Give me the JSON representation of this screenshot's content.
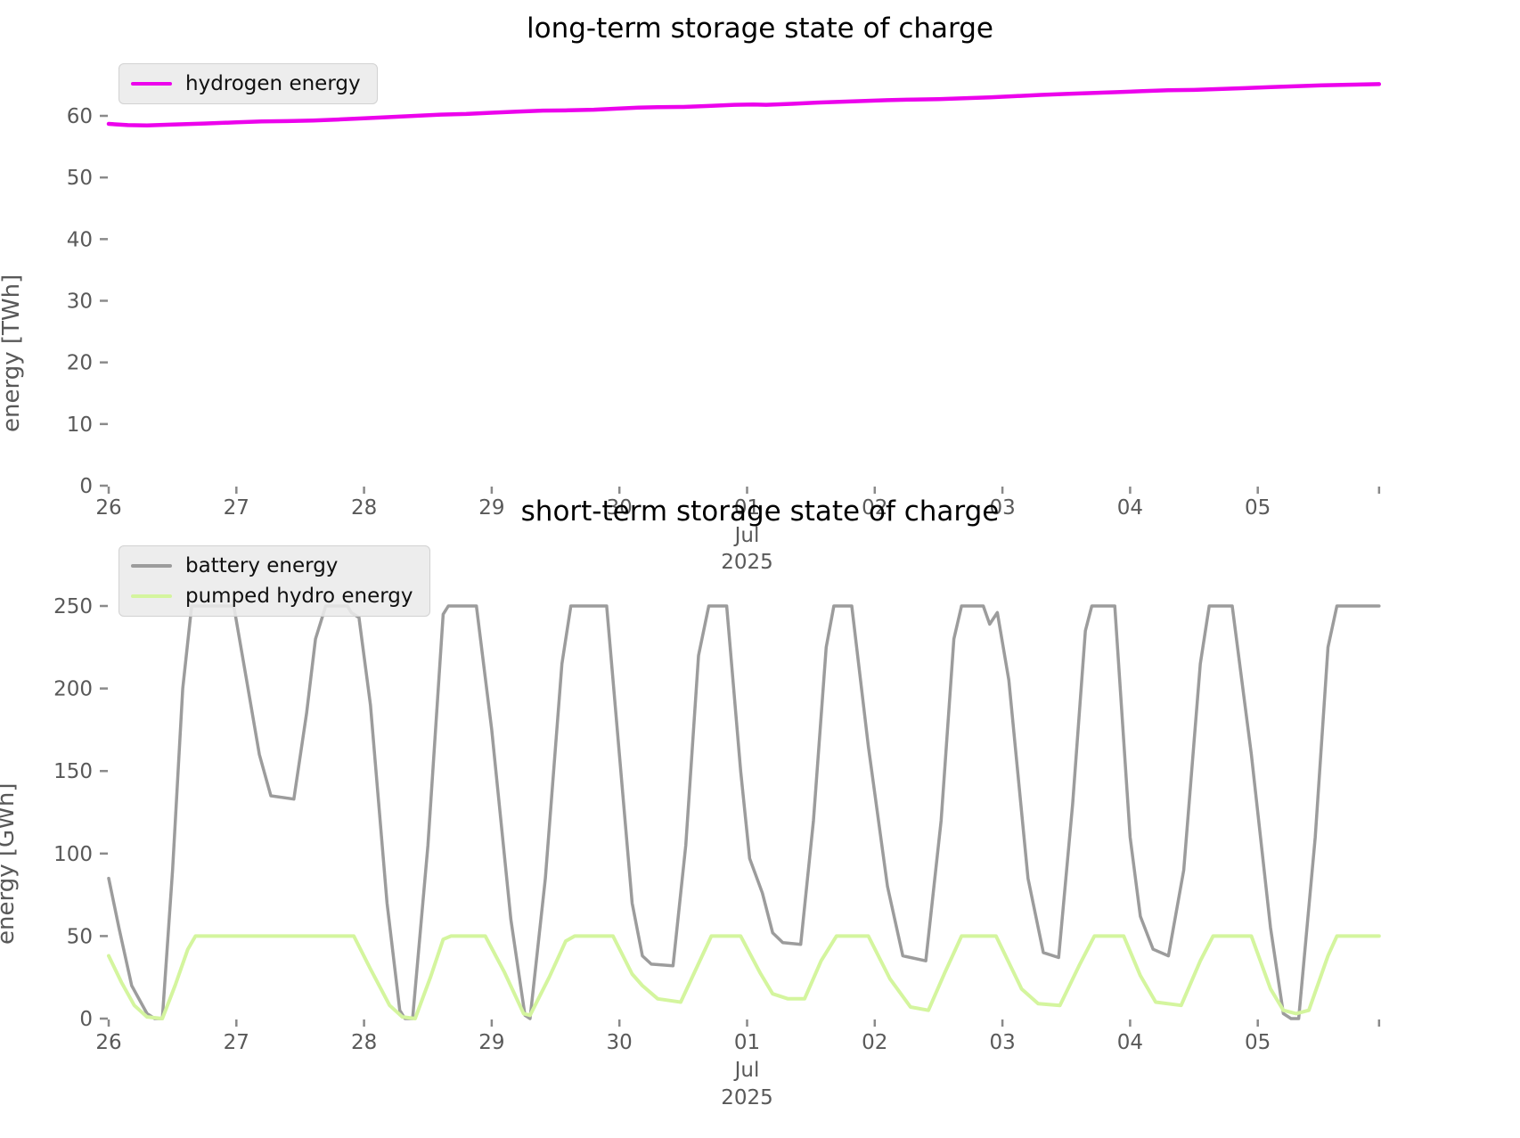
{
  "figure": {
    "background": "#ffffff",
    "tick_color": "#595959",
    "tick_mark_color": "#8a8a8a"
  },
  "chart_data": [
    {
      "type": "line",
      "title": "long-term storage state of charge",
      "ylabel": "energy [TWh]",
      "x_tick_labels": [
        "26",
        "27",
        "28",
        "29",
        "30",
        "01",
        "02",
        "03",
        "04",
        "05"
      ],
      "x_sublabels": [
        "Jul",
        "2025"
      ],
      "x_sublabel_index": 5,
      "y_ticks": [
        0,
        10,
        20,
        30,
        40,
        50,
        60
      ],
      "y_unit": "TWh",
      "x_range_days": [
        0,
        9.95
      ],
      "grid": false,
      "legend_position": "upper left",
      "series": [
        {
          "name": "hydrogen energy",
          "color": "#ec02ec",
          "line_width": 4.5,
          "points": [
            [
              0,
              58.7
            ],
            [
              0.15,
              58.5
            ],
            [
              0.3,
              58.45
            ],
            [
              0.5,
              58.6
            ],
            [
              0.75,
              58.75
            ],
            [
              1.0,
              58.95
            ],
            [
              1.2,
              59.1
            ],
            [
              1.4,
              59.15
            ],
            [
              1.6,
              59.25
            ],
            [
              1.8,
              59.4
            ],
            [
              2.0,
              59.6
            ],
            [
              2.2,
              59.8
            ],
            [
              2.4,
              60.0
            ],
            [
              2.6,
              60.2
            ],
            [
              2.8,
              60.3
            ],
            [
              3.0,
              60.5
            ],
            [
              3.2,
              60.7
            ],
            [
              3.4,
              60.85
            ],
            [
              3.6,
              60.9
            ],
            [
              3.8,
              61.0
            ],
            [
              4.0,
              61.2
            ],
            [
              4.15,
              61.35
            ],
            [
              4.3,
              61.4
            ],
            [
              4.5,
              61.45
            ],
            [
              4.7,
              61.6
            ],
            [
              4.9,
              61.8
            ],
            [
              5.05,
              61.85
            ],
            [
              5.15,
              61.8
            ],
            [
              5.35,
              61.95
            ],
            [
              5.55,
              62.15
            ],
            [
              5.75,
              62.3
            ],
            [
              5.95,
              62.45
            ],
            [
              6.1,
              62.55
            ],
            [
              6.3,
              62.65
            ],
            [
              6.5,
              62.7
            ],
            [
              6.7,
              62.85
            ],
            [
              6.9,
              63.0
            ],
            [
              7.1,
              63.2
            ],
            [
              7.3,
              63.4
            ],
            [
              7.5,
              63.55
            ],
            [
              7.7,
              63.7
            ],
            [
              7.9,
              63.85
            ],
            [
              8.1,
              64.0
            ],
            [
              8.3,
              64.15
            ],
            [
              8.5,
              64.2
            ],
            [
              8.7,
              64.35
            ],
            [
              8.9,
              64.5
            ],
            [
              9.1,
              64.65
            ],
            [
              9.3,
              64.8
            ],
            [
              9.5,
              64.95
            ],
            [
              9.7,
              65.05
            ],
            [
              9.95,
              65.15
            ]
          ]
        }
      ]
    },
    {
      "type": "line",
      "title": "short-term storage state of charge",
      "ylabel": "energy [GWh]",
      "x_tick_labels": [
        "26",
        "27",
        "28",
        "29",
        "30",
        "01",
        "02",
        "03",
        "04",
        "05"
      ],
      "x_sublabels": [
        "Jul",
        "2025"
      ],
      "x_sublabel_index": 5,
      "y_ticks": [
        0,
        50,
        100,
        150,
        200,
        250
      ],
      "y_unit": "GWh",
      "x_range_days": [
        0,
        9.95
      ],
      "grid": false,
      "legend_position": "upper left",
      "series": [
        {
          "name": "battery energy",
          "color": "#9c9c9c",
          "line_width": 3.5,
          "points": [
            [
              0,
              85
            ],
            [
              0.08,
              55
            ],
            [
              0.18,
              20
            ],
            [
              0.3,
              3
            ],
            [
              0.36,
              0
            ],
            [
              0.42,
              0
            ],
            [
              0.5,
              90
            ],
            [
              0.58,
              200
            ],
            [
              0.65,
              250
            ],
            [
              0.98,
              250
            ],
            [
              1.08,
              205
            ],
            [
              1.18,
              160
            ],
            [
              1.27,
              135
            ],
            [
              1.45,
              133
            ],
            [
              1.55,
              185
            ],
            [
              1.62,
              230
            ],
            [
              1.7,
              250
            ],
            [
              1.87,
              250
            ],
            [
              1.9,
              246
            ],
            [
              1.96,
              243
            ],
            [
              2.05,
              190
            ],
            [
              2.18,
              70
            ],
            [
              2.28,
              5
            ],
            [
              2.32,
              0
            ],
            [
              2.38,
              0
            ],
            [
              2.5,
              105
            ],
            [
              2.62,
              245
            ],
            [
              2.66,
              250
            ],
            [
              2.88,
              250
            ],
            [
              3.0,
              175
            ],
            [
              3.15,
              60
            ],
            [
              3.26,
              2
            ],
            [
              3.3,
              0
            ],
            [
              3.42,
              85
            ],
            [
              3.55,
              215
            ],
            [
              3.62,
              250
            ],
            [
              3.9,
              250
            ],
            [
              4.0,
              160
            ],
            [
              4.1,
              70
            ],
            [
              4.18,
              38
            ],
            [
              4.25,
              33
            ],
            [
              4.42,
              32
            ],
            [
              4.52,
              105
            ],
            [
              4.62,
              220
            ],
            [
              4.7,
              250
            ],
            [
              4.84,
              250
            ],
            [
              4.95,
              150
            ],
            [
              5.02,
              97
            ],
            [
              5.12,
              76
            ],
            [
              5.2,
              52
            ],
            [
              5.28,
              46
            ],
            [
              5.42,
              45
            ],
            [
              5.52,
              120
            ],
            [
              5.62,
              225
            ],
            [
              5.68,
              250
            ],
            [
              5.82,
              250
            ],
            [
              5.95,
              165
            ],
            [
              6.1,
              80
            ],
            [
              6.22,
              38
            ],
            [
              6.4,
              35
            ],
            [
              6.52,
              120
            ],
            [
              6.62,
              230
            ],
            [
              6.68,
              250
            ],
            [
              6.85,
              250
            ],
            [
              6.9,
              239
            ],
            [
              6.96,
              246
            ],
            [
              7.05,
              205
            ],
            [
              7.2,
              85
            ],
            [
              7.32,
              40
            ],
            [
              7.44,
              37
            ],
            [
              7.55,
              130
            ],
            [
              7.65,
              235
            ],
            [
              7.7,
              250
            ],
            [
              7.88,
              250
            ],
            [
              8.0,
              110
            ],
            [
              8.08,
              62
            ],
            [
              8.18,
              42
            ],
            [
              8.3,
              38
            ],
            [
              8.42,
              90
            ],
            [
              8.55,
              215
            ],
            [
              8.62,
              250
            ],
            [
              8.8,
              250
            ],
            [
              8.95,
              160
            ],
            [
              9.1,
              55
            ],
            [
              9.2,
              3
            ],
            [
              9.26,
              0
            ],
            [
              9.32,
              0
            ],
            [
              9.45,
              110
            ],
            [
              9.55,
              225
            ],
            [
              9.62,
              250
            ],
            [
              9.95,
              250
            ]
          ]
        },
        {
          "name": "pumped hydro energy",
          "color": "#d4f59e",
          "line_width": 4,
          "points": [
            [
              0,
              38
            ],
            [
              0.1,
              22
            ],
            [
              0.2,
              8
            ],
            [
              0.3,
              1
            ],
            [
              0.42,
              0
            ],
            [
              0.52,
              20
            ],
            [
              0.62,
              42
            ],
            [
              0.68,
              50
            ],
            [
              1.92,
              50
            ],
            [
              2.05,
              30
            ],
            [
              2.2,
              8
            ],
            [
              2.3,
              1
            ],
            [
              2.4,
              0
            ],
            [
              2.52,
              25
            ],
            [
              2.62,
              48
            ],
            [
              2.68,
              50
            ],
            [
              2.95,
              50
            ],
            [
              3.1,
              28
            ],
            [
              3.25,
              3
            ],
            [
              3.3,
              2
            ],
            [
              3.45,
              25
            ],
            [
              3.58,
              47
            ],
            [
              3.65,
              50
            ],
            [
              3.95,
              50
            ],
            [
              4.1,
              27
            ],
            [
              4.18,
              20
            ],
            [
              4.3,
              12
            ],
            [
              4.48,
              10
            ],
            [
              4.6,
              30
            ],
            [
              4.72,
              50
            ],
            [
              4.95,
              50
            ],
            [
              5.1,
              28
            ],
            [
              5.2,
              15
            ],
            [
              5.32,
              12
            ],
            [
              5.45,
              12
            ],
            [
              5.58,
              35
            ],
            [
              5.7,
              50
            ],
            [
              5.95,
              50
            ],
            [
              6.12,
              24
            ],
            [
              6.28,
              7
            ],
            [
              6.42,
              5
            ],
            [
              6.55,
              28
            ],
            [
              6.68,
              50
            ],
            [
              6.95,
              50
            ],
            [
              7.15,
              18
            ],
            [
              7.28,
              9
            ],
            [
              7.45,
              8
            ],
            [
              7.6,
              32
            ],
            [
              7.72,
              50
            ],
            [
              7.95,
              50
            ],
            [
              8.08,
              26
            ],
            [
              8.2,
              10
            ],
            [
              8.4,
              8
            ],
            [
              8.55,
              35
            ],
            [
              8.65,
              50
            ],
            [
              8.95,
              50
            ],
            [
              9.1,
              18
            ],
            [
              9.2,
              5
            ],
            [
              9.3,
              3
            ],
            [
              9.4,
              5
            ],
            [
              9.55,
              38
            ],
            [
              9.62,
              50
            ],
            [
              9.95,
              50
            ]
          ]
        }
      ]
    }
  ]
}
